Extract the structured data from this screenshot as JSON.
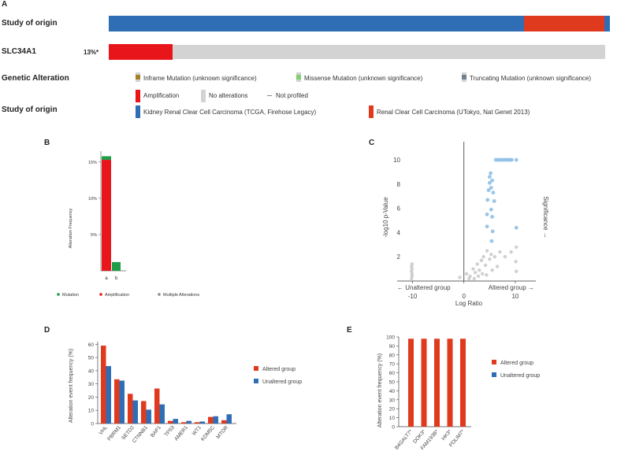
{
  "panel_a": {
    "letter": "A",
    "tracks": {
      "study_label": "Study of origin",
      "gene_label": "SLC34A1",
      "gene_percent": "13%*",
      "genetic_alteration_label": "Genetic Alteration",
      "study_legend_label": "Study of origin"
    },
    "study_segments": [
      {
        "name": "Kidney Renal Clear Cell Carcinoma (TCGA, Firehose Legacy)",
        "fraction": 0.829,
        "color": "#2f6db5"
      },
      {
        "name": "Renal Clear Cell Carcinoma (UTokyo, Nat Genet 2013)",
        "fraction": 0.16,
        "color": "#e03a1e"
      },
      {
        "name": "other",
        "fraction": 0.011,
        "color": "#2f6db5"
      }
    ],
    "gene_track": {
      "amplified_fraction": 0.128,
      "amp_color": "#e8151b",
      "none_color": "#d3d3d3"
    },
    "alteration_legend": [
      {
        "label": "Inframe Mutation (unknown significance)",
        "color": "#a68028"
      },
      {
        "label": "Missense Mutation (unknown significance)",
        "color": "#7fcf6a"
      },
      {
        "label": "Truncating Mutation (unknown significance)",
        "color": "#708090"
      },
      {
        "label": "Amplification",
        "color": "#e8151b"
      },
      {
        "label": "No alterations",
        "color": "#d3d3d3"
      },
      {
        "label": "Not profiled",
        "color": "#888888"
      }
    ],
    "study_legend": [
      {
        "label": "Kidney Renal Clear Cell Carcinoma (TCGA, Firehose Legacy)",
        "color": "#2f6db5"
      },
      {
        "label": "Renal Clear Cell Carcinoma (UTokyo, Nat Genet 2013)",
        "color": "#e03a1e"
      }
    ]
  },
  "panel_b": {
    "letter": "B",
    "chart_data": {
      "type": "bar",
      "title": "",
      "ylabel": "Alteration Frequency",
      "yticks": [
        "5%",
        "10%",
        "15%"
      ],
      "ytick_values": [
        5,
        10,
        15
      ],
      "ylim": [
        0,
        16.5
      ],
      "categories": [
        "a",
        "b"
      ],
      "stacks": [
        {
          "category": "a",
          "amplification": 15.3,
          "mutation": 0.5
        },
        {
          "category": "b",
          "amplification": 0,
          "mutation": 1.2
        }
      ],
      "legend": [
        {
          "label": "Mutation",
          "color": "#1f9e4a"
        },
        {
          "label": "Amplification",
          "color": "#e8151b"
        },
        {
          "label": "Multiple Alterations",
          "color": "#888888"
        }
      ]
    }
  },
  "panel_c": {
    "letter": "C",
    "chart_data": {
      "type": "scatter",
      "xlabel": "Log Ratio",
      "ylabel": "-log10 p-Value",
      "right_label": "Significance →",
      "left_arrow": "← Unaltered group",
      "right_arrow": "Altered group →",
      "xticks": [
        "-10",
        "0",
        "10"
      ],
      "xtick_values": [
        -10,
        0,
        10
      ],
      "yticks": [
        "2",
        "4",
        "6",
        "8",
        "10"
      ],
      "ytick_values": [
        2,
        4,
        6,
        8,
        10
      ],
      "xlim": [
        -13,
        14
      ],
      "ylim": [
        0,
        11.5
      ],
      "significant_points": [
        [
          6.2,
          10
        ],
        [
          6.6,
          10
        ],
        [
          7.0,
          10
        ],
        [
          7.4,
          10
        ],
        [
          7.8,
          10
        ],
        [
          8.2,
          10
        ],
        [
          8.6,
          10
        ],
        [
          9.0,
          10
        ],
        [
          9.3,
          10
        ],
        [
          10.2,
          10
        ],
        [
          5.2,
          8.9
        ],
        [
          5.0,
          8.6
        ],
        [
          5.5,
          8.3
        ],
        [
          5.0,
          8.1
        ],
        [
          5.3,
          7.7
        ],
        [
          4.8,
          7.5
        ],
        [
          5.7,
          7.3
        ],
        [
          4.6,
          6.7
        ],
        [
          5.9,
          6.6
        ],
        [
          5.3,
          5.9
        ],
        [
          4.5,
          5.5
        ],
        [
          5.5,
          5.3
        ],
        [
          4.5,
          4.5
        ],
        [
          5.6,
          4.1
        ],
        [
          10.2,
          4.4
        ],
        [
          5.4,
          3.3
        ]
      ],
      "nonsignificant_points": [
        [
          -10.2,
          0.2
        ],
        [
          -10.1,
          0.4
        ],
        [
          -10.1,
          0.6
        ],
        [
          -10.2,
          0.8
        ],
        [
          -10.1,
          1.0
        ],
        [
          -10.2,
          1.2
        ],
        [
          -10.1,
          1.4
        ],
        [
          -0.8,
          0.3
        ],
        [
          0.5,
          0.6
        ],
        [
          1.2,
          0.4
        ],
        [
          1.8,
          1.0
        ],
        [
          2.2,
          0.7
        ],
        [
          2.6,
          1.4
        ],
        [
          3.0,
          0.9
        ],
        [
          3.4,
          1.7
        ],
        [
          3.8,
          2.0
        ],
        [
          4.2,
          1.3
        ],
        [
          4.5,
          2.5
        ],
        [
          5.0,
          1.8
        ],
        [
          5.3,
          2.2
        ],
        [
          6.0,
          2.0
        ],
        [
          7.0,
          2.4
        ],
        [
          8.0,
          2.0
        ],
        [
          9.2,
          2.4
        ],
        [
          10.2,
          2.8
        ],
        [
          10.1,
          1.6
        ],
        [
          10.2,
          0.8
        ],
        [
          1.0,
          0.2
        ],
        [
          2.0,
          0.2
        ],
        [
          2.8,
          0.4
        ],
        [
          3.6,
          0.6
        ],
        [
          4.4,
          0.5
        ],
        [
          5.5,
          0.9
        ],
        [
          6.5,
          1.2
        ]
      ]
    }
  },
  "panel_d": {
    "letter": "D",
    "chart_data": {
      "type": "bar",
      "ylabel": "Alteration event frequency (%)",
      "ylim": [
        0,
        62
      ],
      "yticks": [
        "0",
        "10",
        "20",
        "30",
        "40",
        "50",
        "60"
      ],
      "ytick_values": [
        0,
        10,
        20,
        30,
        40,
        50,
        60
      ],
      "categories": [
        "VHL",
        "PBRM1",
        "SETD2",
        "CTNNB1",
        "BAP1",
        "TP53",
        "AMER1",
        "WT1",
        "KDM5C",
        "MTOR"
      ],
      "series": [
        {
          "name": "Altered group",
          "color": "#e03a1e",
          "values": [
            59,
            33.5,
            22.5,
            17,
            26.5,
            2,
            1,
            1,
            5,
            2.5
          ]
        },
        {
          "name": "Unaltered group",
          "color": "#2f6db5",
          "values": [
            43.5,
            32.5,
            17.5,
            10.5,
            14.5,
            3.5,
            2,
            1.5,
            5.5,
            7
          ]
        }
      ]
    }
  },
  "panel_e": {
    "letter": "E",
    "chart_data": {
      "type": "bar",
      "ylabel": "Alteration event frequency (%)",
      "ylim": [
        0,
        100
      ],
      "yticks": [
        "0",
        "10",
        "20",
        "30",
        "40",
        "50",
        "60",
        "70",
        "80",
        "90",
        "100"
      ],
      "ytick_values": [
        0,
        10,
        20,
        30,
        40,
        50,
        60,
        70,
        80,
        90,
        100
      ],
      "categories": [
        "B4GALT7*",
        "DOK3*",
        "FAM193B*",
        "HK3*",
        "PDLIM7*"
      ],
      "series": [
        {
          "name": "Altered group",
          "color": "#e03a1e",
          "values": [
            98,
            98,
            98,
            98,
            98
          ]
        },
        {
          "name": "Unaltered group",
          "color": "#2f6db5",
          "values": [
            0,
            0,
            0,
            0,
            0
          ]
        }
      ]
    }
  }
}
